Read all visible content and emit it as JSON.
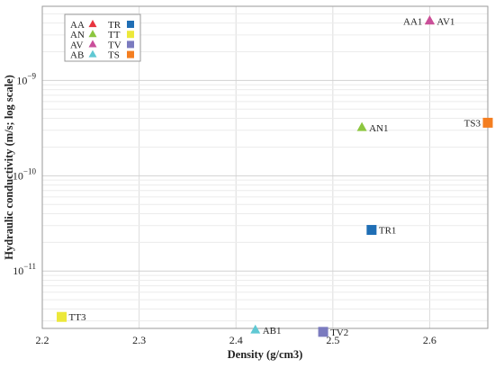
{
  "chart_data": {
    "type": "scatter",
    "xlabel": "Density (g/cm3)",
    "ylabel": "Hydraulic conductivity (m/s; log scale)",
    "x_scale": "linear",
    "y_scale": "log",
    "xlim": [
      2.2,
      2.66
    ],
    "ylim": [
      2.5e-12,
      6e-09
    ],
    "x_ticks": [
      {
        "value": 2.2,
        "label": "2.2"
      },
      {
        "value": 2.3,
        "label": "2.3"
      },
      {
        "value": 2.4,
        "label": "2.4"
      },
      {
        "value": 2.5,
        "label": "2.5"
      },
      {
        "value": 2.6,
        "label": "2.6"
      }
    ],
    "y_ticks": [
      {
        "value": 1e-11,
        "mantissa": "10",
        "exponent": "−11"
      },
      {
        "value": 1e-10,
        "mantissa": "10",
        "exponent": "−10"
      },
      {
        "value": 1e-09,
        "mantissa": "10",
        "exponent": "−9"
      }
    ],
    "grid": true,
    "legend_position": "top-left",
    "legend": [
      {
        "name": "AA",
        "marker": "triangle",
        "color": "#e8343f"
      },
      {
        "name": "AN",
        "marker": "triangle",
        "color": "#8cc63f"
      },
      {
        "name": "AV",
        "marker": "triangle",
        "color": "#c94f9a"
      },
      {
        "name": "AB",
        "marker": "triangle",
        "color": "#5fc8d3"
      },
      {
        "name": "TR",
        "marker": "square",
        "color": "#1f6eb5"
      },
      {
        "name": "TT",
        "marker": "square",
        "color": "#ece83a"
      },
      {
        "name": "TV",
        "marker": "square",
        "color": "#7b7bbf"
      },
      {
        "name": "TS",
        "marker": "square",
        "color": "#f47e20"
      }
    ],
    "points": [
      {
        "label": "AA1",
        "x": 2.6,
        "y": 4.2e-09,
        "marker": "triangle",
        "color": "#e8343f",
        "label_side": "left"
      },
      {
        "label": "AV1",
        "x": 2.6,
        "y": 4.2e-09,
        "marker": "triangle",
        "color": "#c94f9a",
        "label_side": "right"
      },
      {
        "label": "AN1",
        "x": 2.53,
        "y": 3.2e-10,
        "marker": "triangle",
        "color": "#8cc63f",
        "label_side": "right"
      },
      {
        "label": "TS3",
        "x": 2.66,
        "y": 3.6e-10,
        "marker": "square",
        "color": "#f47e20",
        "label_side": "left"
      },
      {
        "label": "TR1",
        "x": 2.54,
        "y": 2.7e-11,
        "marker": "square",
        "color": "#1f6eb5",
        "label_side": "right"
      },
      {
        "label": "TT3",
        "x": 2.22,
        "y": 3.3e-12,
        "marker": "square",
        "color": "#ece83a",
        "label_side": "right"
      },
      {
        "label": "AB1",
        "x": 2.42,
        "y": 2.4e-12,
        "marker": "triangle",
        "color": "#5fc8d3",
        "label_side": "right"
      },
      {
        "label": "TV2",
        "x": 2.49,
        "y": 2.3e-12,
        "marker": "square",
        "color": "#7b7bbf",
        "label_side": "right"
      }
    ]
  }
}
